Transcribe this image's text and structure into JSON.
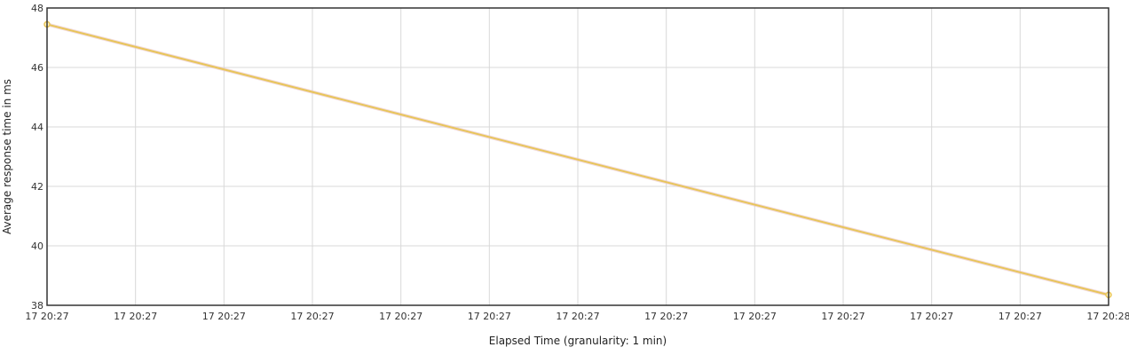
{
  "chart_data": {
    "type": "line",
    "xlabel": "Elapsed Time (granularity: 1 min)",
    "ylabel": "Average response time in ms",
    "ylim": [
      38,
      48
    ],
    "yticks": [
      "38",
      "40",
      "42",
      "44",
      "46",
      "48"
    ],
    "xticks": [
      "17 20:27",
      "17 20:27",
      "17 20:27",
      "17 20:27",
      "17 20:27",
      "17 20:27",
      "17 20:27",
      "17 20:27",
      "17 20:27",
      "17 20:27",
      "17 20:27",
      "17 20:27",
      "17 20:28"
    ],
    "grid": true,
    "series": [
      {
        "color": "#e8c55a",
        "points": [
          {
            "x": "17 20:27",
            "y": 47.45
          },
          {
            "x": "17 20:28",
            "y": 38.35
          }
        ]
      }
    ]
  }
}
